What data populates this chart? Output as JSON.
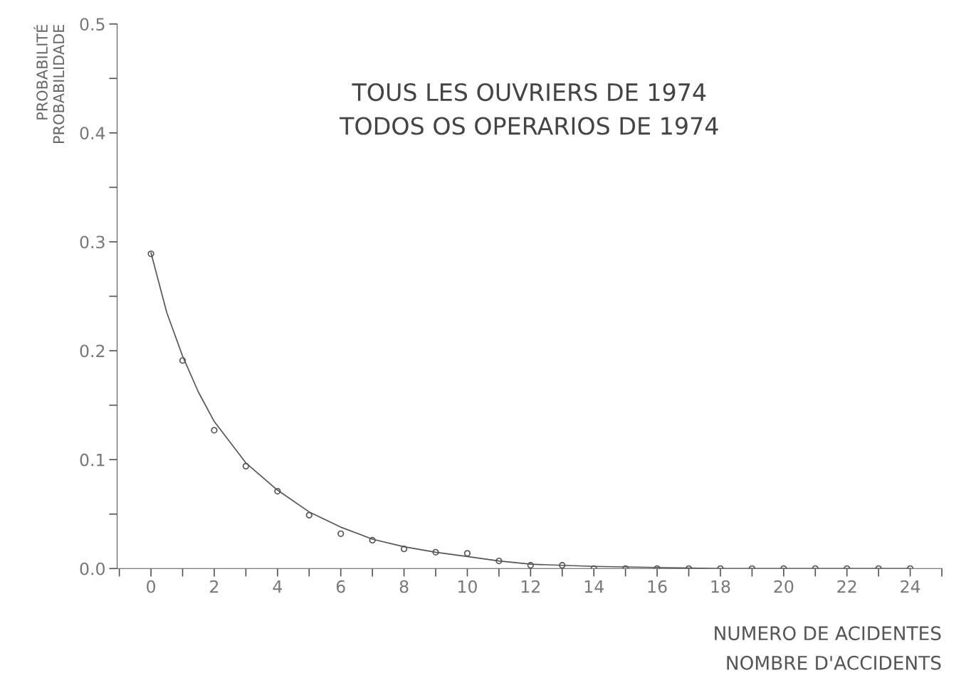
{
  "chart_data": {
    "type": "scatter",
    "title": "TOUS LES OUVRIERS DE 1974\nTODOS OS OPERARIOS DE 1974",
    "xlabel": "NUMERO DE ACIDENTES\nNOMBRE D'ACCIDENTS",
    "ylabel": "PROBABILITÉ\nPROBABILIDADE",
    "xlim": [
      -1.07,
      25
    ],
    "ylim": [
      0,
      0.5
    ],
    "xticks": [
      {
        "value": -1,
        "label": null
      },
      0,
      {
        "value": 1,
        "label": null
      },
      2,
      {
        "value": 3,
        "label": null
      },
      4,
      {
        "value": 5,
        "label": null
      },
      6,
      {
        "value": 7,
        "label": null
      },
      8,
      {
        "value": 9,
        "label": null
      },
      10,
      {
        "value": 11,
        "label": null
      },
      12,
      {
        "value": 13,
        "label": null
      },
      14,
      {
        "value": 15,
        "label": null
      },
      16,
      {
        "value": 17,
        "label": null
      },
      18,
      {
        "value": 19,
        "label": null
      },
      20,
      {
        "value": 21,
        "label": null
      },
      22,
      {
        "value": 23,
        "label": null
      },
      24,
      {
        "value": 25,
        "label": null
      }
    ],
    "yticks": [
      {
        "value": 0,
        "label": "0.0"
      },
      {
        "value": 0.05,
        "label": null
      },
      0.1,
      {
        "value": 0.15,
        "label": null
      },
      0.2,
      {
        "value": 0.25,
        "label": null
      },
      0.3,
      {
        "value": 0.35,
        "label": null
      },
      0.4,
      {
        "value": 0.45,
        "label": null
      },
      0.5
    ],
    "grid": false,
    "series": [
      {
        "color": "#555555",
        "marker": "circle",
        "x": [
          0,
          1,
          2,
          3,
          4,
          5,
          6,
          7,
          8,
          9,
          10,
          11,
          12,
          13,
          14,
          15,
          16,
          17,
          18,
          19,
          20,
          21,
          22,
          23,
          24
        ],
        "values": [
          0.289,
          0.191,
          0.127,
          0.094,
          0.071,
          0.049,
          0.032,
          0.026,
          0.018,
          0.015,
          0.014,
          0.007,
          0.003,
          0.003,
          0.0,
          0.0,
          0.0,
          0.0,
          0.0,
          0.0,
          0.0,
          0.0,
          0.0,
          0.0,
          0.0
        ]
      },
      {
        "type": "line",
        "color": "#555555",
        "marker": "none",
        "line_style": "solid",
        "x": [
          0,
          0.5,
          1,
          1.5,
          2,
          3,
          4,
          5,
          6,
          7,
          8,
          9,
          10,
          11,
          12,
          14,
          16,
          18,
          20,
          22,
          24
        ],
        "values": [
          0.29,
          0.235,
          0.195,
          0.162,
          0.135,
          0.097,
          0.072,
          0.052,
          0.038,
          0.027,
          0.02,
          0.015,
          0.011,
          0.007,
          0.004,
          0.002,
          0.001,
          0.0,
          0.0,
          0.0,
          0.0
        ]
      }
    ]
  }
}
